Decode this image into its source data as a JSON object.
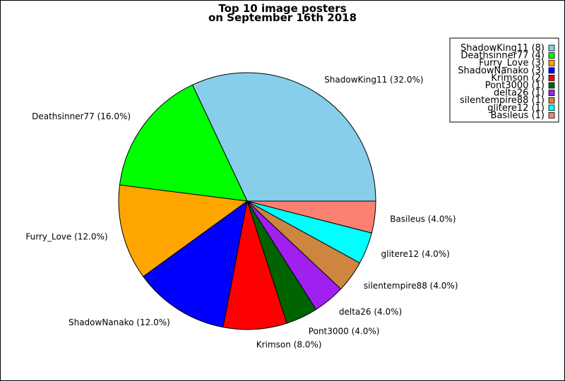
{
  "chart_data": {
    "type": "pie",
    "title_line1": "Top 10 image posters",
    "title_line2": "on September 16th 2018",
    "slices": [
      {
        "name": "ShadowKing11",
        "count": 8,
        "percent": 32.0,
        "color": "#87ceeb",
        "label": "ShadowKing11 (32.0%)",
        "legend": "ShadowKing11 (8)"
      },
      {
        "name": "Deathsinner77",
        "count": 4,
        "percent": 16.0,
        "color": "#00ff00",
        "label": "Deathsinner77 (16.0%)",
        "legend": "Deathsinner77 (4)"
      },
      {
        "name": "Furry_Love",
        "count": 3,
        "percent": 12.0,
        "color": "#ffa500",
        "label": "Furry_Love (12.0%)",
        "legend": "Furry_Love (3)"
      },
      {
        "name": "ShadowNanako",
        "count": 3,
        "percent": 12.0,
        "color": "#0000ff",
        "label": "ShadowNanako (12.0%)",
        "legend": "ShadowNanako (3)"
      },
      {
        "name": "Krimson",
        "count": 2,
        "percent": 8.0,
        "color": "#ff0000",
        "label": "Krimson (8.0%)",
        "legend": "Krimson (2)"
      },
      {
        "name": "Pont3000",
        "count": 1,
        "percent": 4.0,
        "color": "#006400",
        "label": "Pont3000 (4.0%)",
        "legend": "Pont3000 (1)"
      },
      {
        "name": "delta26",
        "count": 1,
        "percent": 4.0,
        "color": "#a020f0",
        "label": "delta26 (4.0%)",
        "legend": "delta26 (1)"
      },
      {
        "name": "silentempire88",
        "count": 1,
        "percent": 4.0,
        "color": "#cd853f",
        "label": "silentempire88 (4.0%)",
        "legend": "silentempire88 (1)"
      },
      {
        "name": "glitere12",
        "count": 1,
        "percent": 4.0,
        "color": "#00ffff",
        "label": "glitere12 (4.0%)",
        "legend": "glitere12 (1)"
      },
      {
        "name": "Basileus",
        "count": 1,
        "percent": 4.0,
        "color": "#fa8072",
        "label": "Basileus (4.0%)",
        "legend": "Basileus (1)"
      }
    ],
    "legend_placement": "top-right"
  }
}
